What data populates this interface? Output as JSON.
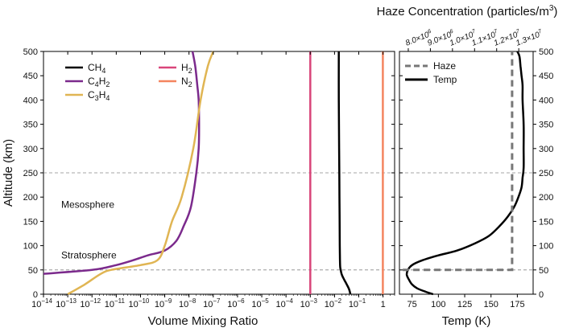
{
  "chart_data": [
    {
      "type": "line",
      "xscale": "log",
      "xlabel": "Volume Mixing Ratio",
      "ylabel": "Altitude (km)",
      "xlim": [
        1e-14,
        3
      ],
      "ylim": [
        0,
        500
      ],
      "x_tick_exponents": [
        -14,
        -13,
        -12,
        -11,
        -10,
        -9,
        -8,
        -7,
        -6,
        -5,
        -4,
        -3,
        -2,
        -1
      ],
      "x_tick_last_label": "1",
      "y_ticks": [
        0,
        50,
        100,
        150,
        200,
        250,
        300,
        350,
        400,
        450,
        500
      ],
      "hlines": [
        50,
        250
      ],
      "region_labels": [
        {
          "text": "Mesosphere",
          "altitude": 185
        },
        {
          "text": "Stratosphere",
          "altitude": 80
        }
      ],
      "legend": [
        {
          "sym": "CH",
          "sub": "4",
          "sym2": "",
          "sub2": "",
          "color": "#000000"
        },
        {
          "sym": "C",
          "sub": "4",
          "sym2": "H",
          "sub2": "2",
          "color": "#7b2a8c"
        },
        {
          "sym": "C",
          "sub": "3",
          "sym2": "H",
          "sub2": "4",
          "color": "#e0b553"
        },
        {
          "sym": "H",
          "sub": "2",
          "sym2": "",
          "sub2": "",
          "color": "#d9457a"
        },
        {
          "sym": "N",
          "sub": "2",
          "sym2": "",
          "sub2": "",
          "color": "#f4845f"
        }
      ],
      "series": [
        {
          "name": "CH4",
          "color": "#000000",
          "x": [
            0.045,
            0.04,
            0.032,
            0.025,
            0.02,
            0.018,
            0.017,
            0.0165,
            0.016,
            0.0155,
            0.015,
            0.015
          ],
          "y": [
            0,
            10,
            20,
            30,
            40,
            50,
            60,
            100,
            200,
            300,
            400,
            500
          ]
        },
        {
          "name": "C4H2",
          "color": "#7b2a8c",
          "x": [
            1e-14,
            1e-12,
            1e-11,
            5e-11,
            2e-10,
            1e-09,
            3e-09,
            6e-09,
            1.2e-08,
            2e-08,
            2.5e-08,
            2.6e-08,
            2.5e-08,
            2.2e-08,
            1.8e-08,
            1.4e-08
          ],
          "y": [
            42,
            50,
            60,
            70,
            80,
            90,
            110,
            140,
            180,
            250,
            300,
            350,
            400,
            430,
            470,
            500
          ]
        },
        {
          "name": "C3H4",
          "color": "#e0b553",
          "x": [
            1e-13,
            5e-13,
            2e-12,
            6e-12,
            1e-10,
            5e-10,
            1e-09,
            2e-09,
            5e-09,
            1.5e-08,
            3e-08,
            6e-08,
            1e-07
          ],
          "y": [
            0,
            20,
            40,
            50,
            60,
            70,
            100,
            150,
            200,
            300,
            400,
            470,
            500
          ]
        },
        {
          "name": "H2",
          "color": "#d9457a",
          "x": [
            0.001,
            0.001
          ],
          "y": [
            0,
            500
          ]
        },
        {
          "name": "N2",
          "color": "#f4845f",
          "x": [
            0.98,
            0.98
          ],
          "y": [
            0,
            500
          ]
        }
      ]
    },
    {
      "type": "line",
      "xlabel": "Temp (K)",
      "top_xlabel": "Haze Concentration (particles/m",
      "top_xlabel_sup": "3",
      "top_xlabel_close": ")",
      "xlim": [
        63,
        190
      ],
      "ylim": [
        0,
        500
      ],
      "x_ticks": [
        75,
        100,
        125,
        150,
        175
      ],
      "y_ticks": [
        0,
        50,
        100,
        150,
        200,
        250,
        300,
        350,
        400,
        450,
        500
      ],
      "top_xlim": [
        7600000.0,
        13650000.0
      ],
      "top_ticks": [
        {
          "value": 8000000.0,
          "mant": "8.0×10",
          "exp": "6"
        },
        {
          "value": 9000000.0,
          "mant": "9.0×10",
          "exp": "6"
        },
        {
          "value": 10000000.0,
          "mant": "1.0×10",
          "exp": "7"
        },
        {
          "value": 11000000.0,
          "mant": "1.1×10",
          "exp": "7"
        },
        {
          "value": 12000000.0,
          "mant": "1.2×10",
          "exp": "7"
        },
        {
          "value": 13000000.0,
          "mant": "1.3×10",
          "exp": "7"
        }
      ],
      "hlines": [
        50,
        250
      ],
      "legend": [
        {
          "name": "Haze",
          "color": "#777777",
          "dashed": true
        },
        {
          "name": "Temp",
          "color": "#000000",
          "dashed": false
        }
      ],
      "series": [
        {
          "name": "Temp",
          "color": "#000000",
          "x": [
            95,
            88,
            80,
            75,
            72,
            70,
            71,
            75,
            85,
            100,
            118,
            135,
            148,
            158,
            166,
            172,
            176,
            179,
            180,
            181,
            181,
            181,
            180,
            180,
            179,
            178,
            177,
            175
          ],
          "y": [
            0,
            5,
            12,
            20,
            30,
            40,
            50,
            60,
            70,
            80,
            90,
            105,
            120,
            140,
            160,
            180,
            200,
            220,
            240,
            260,
            300,
            350,
            400,
            430,
            450,
            470,
            490,
            500
          ]
        },
        {
          "name": "Haze",
          "color": "#777777",
          "dashed": true,
          "x": [
            7750000.0,
            12700000.0,
            12700000.0
          ],
          "y": [
            50,
            50,
            500
          ]
        }
      ]
    }
  ]
}
